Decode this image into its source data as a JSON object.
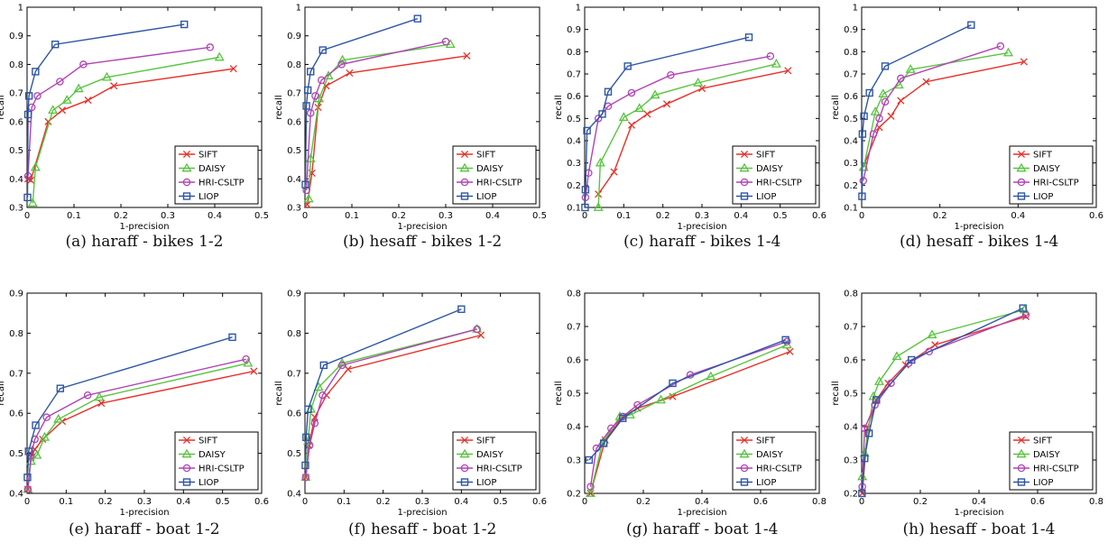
{
  "chart_data": [
    {
      "type": "line",
      "caption": "(a)  haraff - bikes 1-2",
      "xlabel": "1-precision",
      "ylabel": "recall",
      "xlim": [
        0,
        0.5
      ],
      "ylim": [
        0.3,
        1.0
      ],
      "xticks": [
        "0",
        "0.1",
        "0.2",
        "0.3",
        "0.4",
        "0.5"
      ],
      "yticks": [
        "0.3",
        "0.4",
        "0.5",
        "0.6",
        "0.7",
        "0.8",
        "0.9",
        "1"
      ],
      "legend": "bottom-right",
      "series": [
        {
          "name": "SIFT",
          "x": [
            0.002,
            0.008,
            0.045,
            0.075,
            0.13,
            0.185,
            0.44
          ],
          "y": [
            0.4,
            0.395,
            0.6,
            0.64,
            0.675,
            0.725,
            0.785
          ]
        },
        {
          "name": "DAISY",
          "x": [
            0.012,
            0.018,
            0.055,
            0.085,
            0.11,
            0.17,
            0.41
          ],
          "y": [
            0.315,
            0.44,
            0.64,
            0.675,
            0.715,
            0.755,
            0.825
          ]
        },
        {
          "name": "HRI-CSLTP",
          "x": [
            0.002,
            0.01,
            0.022,
            0.07,
            0.12,
            0.39
          ],
          "y": [
            0.41,
            0.65,
            0.69,
            0.74,
            0.8,
            0.86
          ]
        },
        {
          "name": "LIOP",
          "x": [
            0.001,
            0.002,
            0.004,
            0.018,
            0.06,
            0.335
          ],
          "y": [
            0.335,
            0.625,
            0.69,
            0.775,
            0.87,
            0.94
          ]
        }
      ]
    },
    {
      "type": "line",
      "caption": "(b)  hesaff - bikes 1-2",
      "xlabel": "1-precision",
      "ylabel": "recall",
      "xlim": [
        0,
        0.5
      ],
      "ylim": [
        0.3,
        1.0
      ],
      "xticks": [
        "0",
        "0.1",
        "0.2",
        "0.3",
        "0.4",
        "0.5"
      ],
      "yticks": [
        "0.3",
        "0.4",
        "0.5",
        "0.6",
        "0.7",
        "0.8",
        "0.9",
        "1"
      ],
      "legend": "bottom-right",
      "series": [
        {
          "name": "SIFT",
          "x": [
            0.005,
            0.015,
            0.028,
            0.045,
            0.095,
            0.345
          ],
          "y": [
            0.31,
            0.42,
            0.65,
            0.725,
            0.77,
            0.83
          ]
        },
        {
          "name": "DAISY",
          "x": [
            0.008,
            0.012,
            0.03,
            0.05,
            0.08,
            0.31
          ],
          "y": [
            0.33,
            0.47,
            0.68,
            0.76,
            0.815,
            0.87
          ]
        },
        {
          "name": "HRI-CSLTP",
          "x": [
            0.003,
            0.012,
            0.022,
            0.035,
            0.078,
            0.3
          ],
          "y": [
            0.36,
            0.63,
            0.69,
            0.745,
            0.8,
            0.88
          ]
        },
        {
          "name": "LIOP",
          "x": [
            0.001,
            0.003,
            0.006,
            0.012,
            0.038,
            0.24
          ],
          "y": [
            0.38,
            0.655,
            0.71,
            0.775,
            0.85,
            0.96
          ]
        }
      ]
    },
    {
      "type": "line",
      "caption": "(c)  haraff - bikes 1-4",
      "xlabel": "1-precision",
      "ylabel": "recall",
      "xlim": [
        0,
        0.6
      ],
      "ylim": [
        0.1,
        1.0
      ],
      "xticks": [
        "0",
        "0.1",
        "0.2",
        "0.3",
        "0.4",
        "0.5",
        "0.6"
      ],
      "yticks": [
        "0.1",
        "0.2",
        "0.3",
        "0.4",
        "0.5",
        "0.6",
        "0.7",
        "0.8",
        "0.9",
        "1"
      ],
      "legend": "bottom-right",
      "series": [
        {
          "name": "SIFT",
          "x": [
            0.035,
            0.075,
            0.12,
            0.16,
            0.21,
            0.3,
            0.52
          ],
          "y": [
            0.16,
            0.26,
            0.47,
            0.52,
            0.565,
            0.635,
            0.715
          ]
        },
        {
          "name": "DAISY",
          "x": [
            0.035,
            0.04,
            0.1,
            0.14,
            0.18,
            0.29,
            0.49
          ],
          "y": [
            0.1,
            0.3,
            0.505,
            0.545,
            0.605,
            0.66,
            0.745
          ]
        },
        {
          "name": "HRI-CSLTP",
          "x": [
            0.002,
            0.01,
            0.035,
            0.06,
            0.12,
            0.22,
            0.475
          ],
          "y": [
            0.145,
            0.255,
            0.5,
            0.555,
            0.615,
            0.695,
            0.78
          ]
        },
        {
          "name": "LIOP",
          "x": [
            0.001,
            0.002,
            0.006,
            0.045,
            0.06,
            0.11,
            0.42
          ],
          "y": [
            0.1,
            0.18,
            0.445,
            0.52,
            0.62,
            0.735,
            0.865
          ]
        }
      ]
    },
    {
      "type": "line",
      "caption": "(d)  hesaff - bikes 1-4",
      "xlabel": "1-precision",
      "ylabel": "recall",
      "xlim": [
        0,
        0.6
      ],
      "ylim": [
        0.1,
        1.0
      ],
      "xticks": [
        "0",
        "0.2",
        "0.4",
        "0.6"
      ],
      "yticks": [
        "0.1",
        "0.2",
        "0.3",
        "0.4",
        "0.5",
        "0.6",
        "0.7",
        "0.8",
        "0.9",
        "1"
      ],
      "legend": "bottom-right",
      "series": [
        {
          "name": "SIFT",
          "x": [
            0.006,
            0.045,
            0.075,
            0.1,
            0.165,
            0.415
          ],
          "y": [
            0.29,
            0.46,
            0.51,
            0.58,
            0.665,
            0.755
          ]
        },
        {
          "name": "DAISY",
          "x": [
            0.005,
            0.035,
            0.055,
            0.095,
            0.125,
            0.375
          ],
          "y": [
            0.28,
            0.53,
            0.61,
            0.65,
            0.72,
            0.795
          ]
        },
        {
          "name": "HRI-CSLTP",
          "x": [
            0.004,
            0.03,
            0.045,
            0.06,
            0.1,
            0.355
          ],
          "y": [
            0.22,
            0.43,
            0.5,
            0.575,
            0.68,
            0.825
          ]
        },
        {
          "name": "LIOP",
          "x": [
            0.001,
            0.002,
            0.006,
            0.02,
            0.06,
            0.28
          ],
          "y": [
            0.15,
            0.43,
            0.51,
            0.615,
            0.735,
            0.92
          ]
        }
      ]
    },
    {
      "type": "line",
      "caption": "(e)  haraff - boat 1-2",
      "xlabel": "1-precision",
      "ylabel": "recall",
      "xlim": [
        0,
        0.6
      ],
      "ylim": [
        0.4,
        0.9
      ],
      "xticks": [
        "0",
        "0.1",
        "0.2",
        "0.3",
        "0.4",
        "0.5",
        "0.6"
      ],
      "yticks": [
        "0.4",
        "0.5",
        "0.6",
        "0.7",
        "0.8",
        "0.9"
      ],
      "legend": "bottom-right",
      "series": [
        {
          "name": "SIFT",
          "x": [
            0.002,
            0.01,
            0.02,
            0.04,
            0.09,
            0.19,
            0.58
          ],
          "y": [
            0.41,
            0.49,
            0.51,
            0.535,
            0.58,
            0.625,
            0.705
          ]
        },
        {
          "name": "DAISY",
          "x": [
            0.002,
            0.01,
            0.025,
            0.045,
            0.08,
            0.185,
            0.565
          ],
          "y": [
            0.41,
            0.48,
            0.495,
            0.54,
            0.585,
            0.64,
            0.725
          ]
        },
        {
          "name": "HRI-CSLTP",
          "x": [
            0.002,
            0.01,
            0.02,
            0.05,
            0.155,
            0.56
          ],
          "y": [
            0.41,
            0.495,
            0.535,
            0.59,
            0.645,
            0.735
          ]
        },
        {
          "name": "LIOP",
          "x": [
            0.001,
            0.004,
            0.022,
            0.085,
            0.525
          ],
          "y": [
            0.44,
            0.505,
            0.57,
            0.662,
            0.79
          ]
        }
      ]
    },
    {
      "type": "line",
      "caption": "(f)  hesaff - boat 1-2",
      "xlabel": "1-precision",
      "ylabel": "recall",
      "xlim": [
        0,
        0.6
      ],
      "ylim": [
        0.4,
        0.9
      ],
      "xticks": [
        "0",
        "0.1",
        "0.2",
        "0.3",
        "0.4",
        "0.5",
        "0.6"
      ],
      "yticks": [
        "0.4",
        "0.5",
        "0.6",
        "0.7",
        "0.8",
        "0.9"
      ],
      "legend": "bottom-right",
      "series": [
        {
          "name": "SIFT",
          "x": [
            0.002,
            0.01,
            0.025,
            0.055,
            0.11,
            0.45
          ],
          "y": [
            0.44,
            0.52,
            0.59,
            0.645,
            0.71,
            0.795
          ]
        },
        {
          "name": "DAISY",
          "x": [
            0.002,
            0.008,
            0.015,
            0.035,
            0.095,
            0.44
          ],
          "y": [
            0.44,
            0.53,
            0.61,
            0.665,
            0.725,
            0.81
          ]
        },
        {
          "name": "HRI-CSLTP",
          "x": [
            0.002,
            0.012,
            0.025,
            0.045,
            0.095,
            0.44
          ],
          "y": [
            0.44,
            0.52,
            0.575,
            0.645,
            0.72,
            0.81
          ]
        },
        {
          "name": "LIOP",
          "x": [
            0.001,
            0.003,
            0.008,
            0.048,
            0.4
          ],
          "y": [
            0.47,
            0.54,
            0.61,
            0.72,
            0.86
          ]
        }
      ]
    },
    {
      "type": "line",
      "caption": "(g)  haraff - boat 1-4",
      "xlabel": "1-precision",
      "ylabel": "recall",
      "xlim": [
        0,
        0.8
      ],
      "ylim": [
        0.2,
        0.8
      ],
      "xticks": [
        "0",
        "0.2",
        "0.4",
        "0.6",
        "0.8"
      ],
      "yticks": [
        "0.2",
        "0.3",
        "0.4",
        "0.5",
        "0.6",
        "0.7",
        "0.8"
      ],
      "legend": "bottom-right",
      "series": [
        {
          "name": "SIFT",
          "x": [
            0.02,
            0.07,
            0.13,
            0.18,
            0.3,
            0.7
          ],
          "y": [
            0.2,
            0.36,
            0.43,
            0.455,
            0.49,
            0.625
          ]
        },
        {
          "name": "DAISY",
          "x": [
            0.02,
            0.06,
            0.12,
            0.155,
            0.26,
            0.43,
            0.69
          ],
          "y": [
            0.2,
            0.35,
            0.43,
            0.435,
            0.48,
            0.55,
            0.645
          ]
        },
        {
          "name": "HRI-CSLTP",
          "x": [
            0.02,
            0.04,
            0.09,
            0.13,
            0.18,
            0.36,
            0.69
          ],
          "y": [
            0.22,
            0.335,
            0.395,
            0.43,
            0.465,
            0.555,
            0.655
          ]
        },
        {
          "name": "LIOP",
          "x": [
            0.015,
            0.065,
            0.13,
            0.3,
            0.685
          ],
          "y": [
            0.3,
            0.35,
            0.425,
            0.53,
            0.66
          ]
        }
      ]
    },
    {
      "type": "line",
      "caption": "(h)  hesaff - boat 1-4",
      "xlabel": "1-precision",
      "ylabel": "recall",
      "xlim": [
        0,
        0.8
      ],
      "ylim": [
        0.2,
        0.8
      ],
      "xticks": [
        "0",
        "0.2",
        "0.4",
        "0.6",
        "0.8"
      ],
      "yticks": [
        "0.2",
        "0.3",
        "0.4",
        "0.5",
        "0.6",
        "0.7",
        "0.8"
      ],
      "legend": "bottom-right",
      "series": [
        {
          "name": "SIFT",
          "x": [
            0.002,
            0.02,
            0.05,
            0.09,
            0.15,
            0.25,
            0.56
          ],
          "y": [
            0.2,
            0.395,
            0.48,
            0.53,
            0.585,
            0.645,
            0.73
          ]
        },
        {
          "name": "DAISY",
          "x": [
            0.002,
            0.01,
            0.04,
            0.06,
            0.12,
            0.24,
            0.555
          ],
          "y": [
            0.25,
            0.32,
            0.49,
            0.535,
            0.61,
            0.675,
            0.75
          ]
        },
        {
          "name": "HRI-CSLTP",
          "x": [
            0.002,
            0.01,
            0.045,
            0.1,
            0.16,
            0.23,
            0.56
          ],
          "y": [
            0.22,
            0.395,
            0.465,
            0.53,
            0.59,
            0.625,
            0.735
          ]
        },
        {
          "name": "LIOP",
          "x": [
            0.001,
            0.01,
            0.025,
            0.05,
            0.17,
            0.55
          ],
          "y": [
            0.2,
            0.305,
            0.38,
            0.48,
            0.6,
            0.755
          ]
        }
      ]
    }
  ],
  "styles": {
    "SIFT": {
      "color": "#e8312a",
      "marker": "x"
    },
    "DAISY": {
      "color": "#57c53f",
      "marker": "triangle"
    },
    "HRI-CSLTP": {
      "color": "#b143b5",
      "marker": "circle"
    },
    "LIOP": {
      "color": "#2e56a5",
      "marker": "square"
    }
  }
}
